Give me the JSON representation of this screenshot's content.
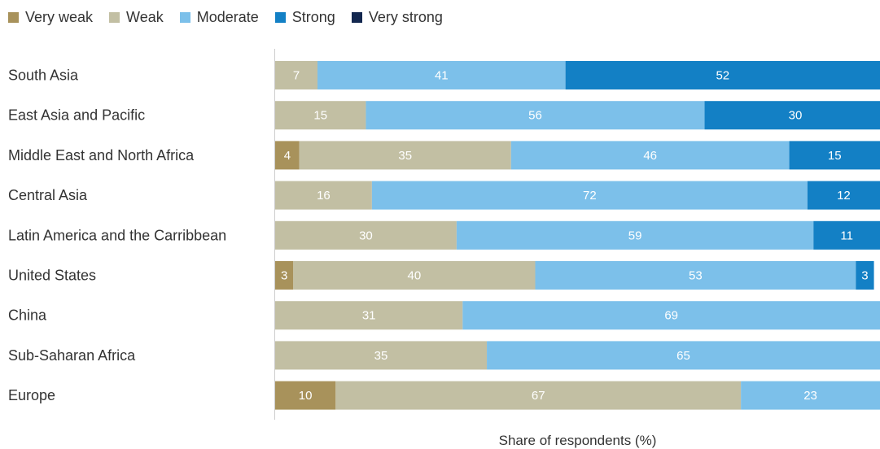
{
  "chart_data": {
    "type": "bar",
    "orientation": "horizontal",
    "stacked": true,
    "categories": [
      "South Asia",
      "East Asia and Pacific",
      "Middle East and North Africa",
      "Central Asia",
      "Latin America and the Carribbean",
      "United States",
      "China",
      "Sub-Saharan Africa",
      "Europe"
    ],
    "series": [
      {
        "name": "Very weak",
        "color": "#a8925b",
        "values": [
          0,
          0,
          4,
          0,
          0,
          3,
          0,
          0,
          10
        ]
      },
      {
        "name": "Weak",
        "color": "#c2bfa3",
        "values": [
          7,
          15,
          35,
          16,
          30,
          40,
          31,
          35,
          67
        ]
      },
      {
        "name": "Moderate",
        "color": "#7cc0ea",
        "values": [
          41,
          56,
          46,
          72,
          59,
          53,
          69,
          65,
          23
        ]
      },
      {
        "name": "Strong",
        "color": "#1380c5",
        "values": [
          52,
          30,
          15,
          12,
          11,
          3,
          0,
          0,
          0
        ]
      },
      {
        "name": "Very strong",
        "color": "#13274f",
        "values": [
          0,
          0,
          0,
          0,
          0,
          0,
          0,
          0,
          0
        ]
      }
    ],
    "xlabel": "Share of respondents (%)",
    "xlim": [
      0,
      100
    ],
    "legend_position": "top-left",
    "grid": false
  }
}
